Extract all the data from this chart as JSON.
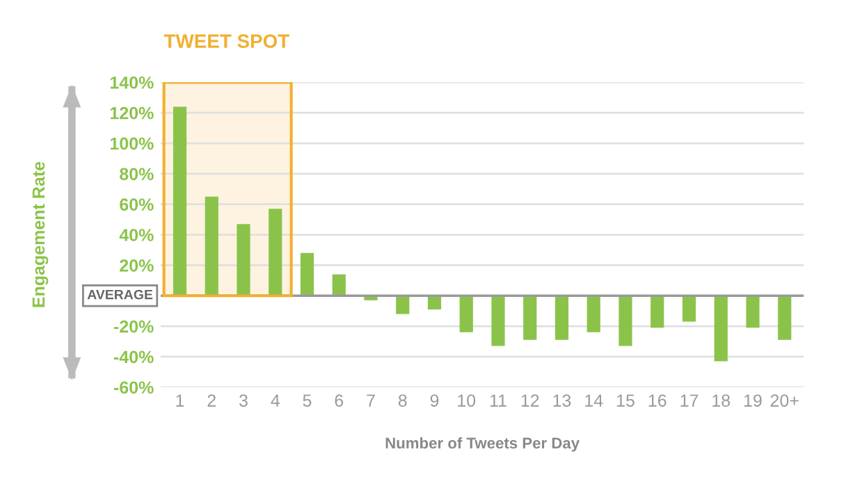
{
  "chart_data": {
    "type": "bar",
    "xlabel": "Number of Tweets Per Day",
    "ylabel": "Engagement Rate",
    "categories": [
      "1",
      "2",
      "3",
      "4",
      "5",
      "6",
      "7",
      "8",
      "9",
      "10",
      "11",
      "12",
      "13",
      "14",
      "15",
      "16",
      "17",
      "18",
      "19",
      "20+"
    ],
    "values": [
      124,
      65,
      47,
      57,
      28,
      14,
      -3,
      -12,
      -9,
      -24,
      -33,
      -29,
      -29,
      -24,
      -33,
      -21,
      -17,
      -43,
      -21,
      -29
    ],
    "color": "#8bc34a",
    "ylim": [
      -60,
      140
    ],
    "yticks": [
      {
        "value": -60,
        "label": "-60%"
      },
      {
        "value": -40,
        "label": "-40%"
      },
      {
        "value": -20,
        "label": "-20%"
      },
      {
        "value": 20,
        "label": "20%"
      },
      {
        "value": 40,
        "label": "40%"
      },
      {
        "value": 60,
        "label": "60%"
      },
      {
        "value": 80,
        "label": "80%"
      },
      {
        "value": 100,
        "label": "100%"
      },
      {
        "value": 120,
        "label": "120%"
      },
      {
        "value": 140,
        "label": "140%"
      }
    ],
    "grid": "y",
    "ref_lines": [
      {
        "axis": "y",
        "value": 0,
        "label": "AVERAGE",
        "color": "#999999"
      }
    ],
    "bands": [
      {
        "axis": "x",
        "from": "1",
        "to": "4",
        "label": "TWEET SPOT",
        "color": "#f0b030"
      }
    ]
  }
}
